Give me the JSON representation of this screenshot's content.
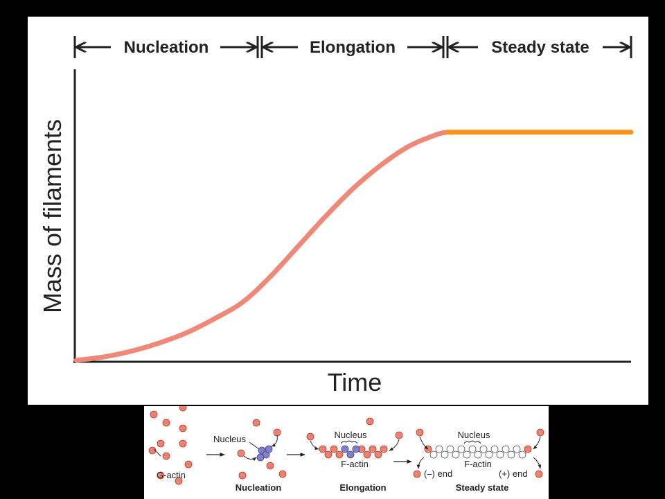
{
  "chart_data": {
    "type": "line",
    "title": "",
    "xlabel": "Time",
    "ylabel": "Mass of filaments",
    "xlim": [
      0,
      100
    ],
    "ylim": [
      0,
      100
    ],
    "grid": false,
    "phases": [
      {
        "label": "Nucleation",
        "start": 0,
        "end": 33
      },
      {
        "label": "Elongation",
        "start": 33,
        "end": 67
      },
      {
        "label": "Steady state",
        "start": 67,
        "end": 100
      }
    ],
    "series": [
      {
        "color": "#f08878",
        "x": [
          0,
          5,
          10,
          15,
          20,
          25,
          30,
          35,
          40,
          45,
          50,
          55,
          60,
          65,
          67
        ],
        "values": [
          0,
          1.5,
          4,
          7.5,
          12,
          18,
          25,
          36,
          49,
          62,
          74,
          84,
          92,
          97,
          98
        ]
      },
      {
        "color": "#f8941e",
        "x": [
          67,
          100
        ],
        "values": [
          98,
          98
        ]
      }
    ]
  },
  "figure": {
    "labels": {
      "g_actin": "G-actin",
      "nucleus_1": "Nucleus",
      "nucleus_2": "Nucleus",
      "nucleus_3": "Nucleus",
      "f_actin_1": "F-actin",
      "f_actin_2": "F-actin",
      "minus_end": "(–) end",
      "plus_end": "(+) end"
    },
    "captions": {
      "nucleation": "Nucleation",
      "elongation": "Elongation",
      "steady_state": "Steady state"
    },
    "colors": {
      "g_actin": "#f08070",
      "nucleus": "#8080cc",
      "f_actin_open": "#ffffff"
    }
  }
}
